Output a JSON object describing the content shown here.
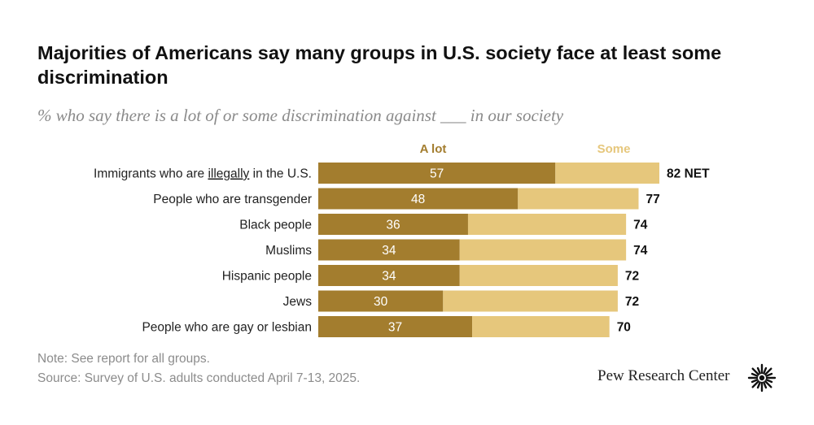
{
  "header": {
    "title": "Majorities of Americans say many groups in U.S. society face at least some discrimination",
    "subtitle": "% who say there is a lot of or some discrimination against ___ in our society"
  },
  "chart_data": {
    "type": "bar",
    "orientation": "horizontal",
    "stacked": true,
    "categories": [
      "Immigrants who are illegally in the U.S.",
      "People who are transgender",
      "Black people",
      "Muslims",
      "Hispanic people",
      "Jews",
      "People who are gay or lesbian"
    ],
    "series": [
      {
        "name": "A lot",
        "values": [
          57,
          48,
          36,
          34,
          34,
          30,
          37
        ],
        "color": "#a37d2e"
      },
      {
        "name": "Some",
        "values": [
          25,
          29,
          38,
          40,
          38,
          42,
          33
        ],
        "color": "#e6c77c"
      }
    ],
    "net": [
      82,
      77,
      74,
      74,
      72,
      72,
      70
    ],
    "net_suffix_first": " NET",
    "underlined_word": "illegally",
    "legend": [
      "A lot",
      "Some"
    ],
    "legend_position": "top"
  },
  "footer": {
    "note": "Note: See report for all groups.",
    "source": "Source: Survey of U.S. adults conducted April 7-13, 2025.",
    "brand": "Pew Research Center"
  }
}
